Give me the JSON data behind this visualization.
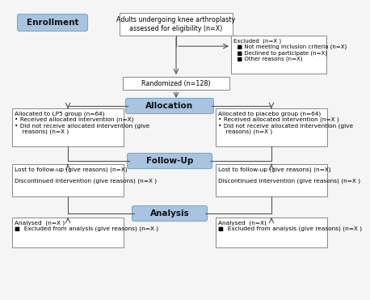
{
  "background_color": "#f5f5f5",
  "label_box_color": "#a8c4e0",
  "label_box_edge": "#7aaac8",
  "content_box_color": "#ffffff",
  "content_box_edge": "#888888",
  "arrow_color": "#555555",
  "enrollment_label": "Enrollment",
  "allocation_label": "Allocation",
  "followup_label": "Follow-Up",
  "analysis_label": "Analysis",
  "eligibility_text": "Adults undergoing knee arthroplasty\nassessed for eligibility (n=X)",
  "excluded_text": "Excluded  (n=X )\n  ■ Not meeting inclusion criteria (n=X)\n  ■ Declined to participate (n=X)\n  ■ Other reasons (n=X)",
  "randomized_text": "Randomized (n=128)",
  "lp5_alloc_text": "Allocated to LP5 group (n=64)\n• Received allocated intervention (n=X)\n• Did not receive allocated intervention (give\n    reasons) (n=X )",
  "placebo_alloc_text": "Allocated to placebo group (n=64)\n• Received allocated intervention (n=X )\n• Did not receive allocated intervention (give\n    reasons) (n=X )",
  "lp5_fu_text": "Lost to follow-up (give reasons) (n=X)\n\nDiscontinued intervention (give reasons) (n=X )",
  "placebo_fu_text": "Lost to follow-up (give reasons) (n=X)\n\nDiscontinued intervention (give reasons) (n=X )",
  "lp5_an_text": "Analysed  (n=X )\n■  Excluded from analysis (give reasons) (n=X )",
  "placebo_an_text": "Analysed  (n=X)\n■  Excluded from analysis (give reasons) (n=X )",
  "fs_label": 7.5,
  "fs_content": 5.8,
  "fs_small": 5.3
}
